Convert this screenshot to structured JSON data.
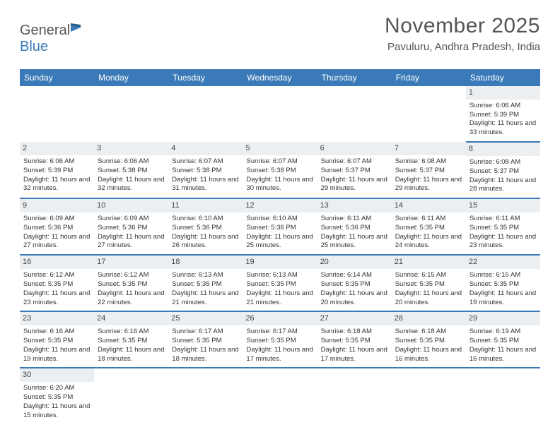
{
  "logo": {
    "part1": "General",
    "part2": "Blue"
  },
  "title": {
    "month": "November 2025",
    "location": "Pavuluru, Andhra Pradesh, India"
  },
  "colors": {
    "headerBg": "#3a7ab8",
    "dayNumBg": "#eceff1",
    "text": "#333"
  },
  "weekdays": [
    "Sunday",
    "Monday",
    "Tuesday",
    "Wednesday",
    "Thursday",
    "Friday",
    "Saturday"
  ],
  "startOffset": 6,
  "days": [
    {
      "n": 1,
      "sunrise": "6:06 AM",
      "sunset": "5:39 PM",
      "daylight": "11 hours and 33 minutes."
    },
    {
      "n": 2,
      "sunrise": "6:06 AM",
      "sunset": "5:39 PM",
      "daylight": "11 hours and 32 minutes."
    },
    {
      "n": 3,
      "sunrise": "6:06 AM",
      "sunset": "5:38 PM",
      "daylight": "11 hours and 32 minutes."
    },
    {
      "n": 4,
      "sunrise": "6:07 AM",
      "sunset": "5:38 PM",
      "daylight": "11 hours and 31 minutes."
    },
    {
      "n": 5,
      "sunrise": "6:07 AM",
      "sunset": "5:38 PM",
      "daylight": "11 hours and 30 minutes."
    },
    {
      "n": 6,
      "sunrise": "6:07 AM",
      "sunset": "5:37 PM",
      "daylight": "11 hours and 29 minutes."
    },
    {
      "n": 7,
      "sunrise": "6:08 AM",
      "sunset": "5:37 PM",
      "daylight": "11 hours and 29 minutes."
    },
    {
      "n": 8,
      "sunrise": "6:08 AM",
      "sunset": "5:37 PM",
      "daylight": "11 hours and 28 minutes."
    },
    {
      "n": 9,
      "sunrise": "6:09 AM",
      "sunset": "5:36 PM",
      "daylight": "11 hours and 27 minutes."
    },
    {
      "n": 10,
      "sunrise": "6:09 AM",
      "sunset": "5:36 PM",
      "daylight": "11 hours and 27 minutes."
    },
    {
      "n": 11,
      "sunrise": "6:10 AM",
      "sunset": "5:36 PM",
      "daylight": "11 hours and 26 minutes."
    },
    {
      "n": 12,
      "sunrise": "6:10 AM",
      "sunset": "5:36 PM",
      "daylight": "11 hours and 25 minutes."
    },
    {
      "n": 13,
      "sunrise": "6:11 AM",
      "sunset": "5:36 PM",
      "daylight": "11 hours and 25 minutes."
    },
    {
      "n": 14,
      "sunrise": "6:11 AM",
      "sunset": "5:35 PM",
      "daylight": "11 hours and 24 minutes."
    },
    {
      "n": 15,
      "sunrise": "6:11 AM",
      "sunset": "5:35 PM",
      "daylight": "11 hours and 23 minutes."
    },
    {
      "n": 16,
      "sunrise": "6:12 AM",
      "sunset": "5:35 PM",
      "daylight": "11 hours and 23 minutes."
    },
    {
      "n": 17,
      "sunrise": "6:12 AM",
      "sunset": "5:35 PM",
      "daylight": "11 hours and 22 minutes."
    },
    {
      "n": 18,
      "sunrise": "6:13 AM",
      "sunset": "5:35 PM",
      "daylight": "11 hours and 21 minutes."
    },
    {
      "n": 19,
      "sunrise": "6:13 AM",
      "sunset": "5:35 PM",
      "daylight": "11 hours and 21 minutes."
    },
    {
      "n": 20,
      "sunrise": "6:14 AM",
      "sunset": "5:35 PM",
      "daylight": "11 hours and 20 minutes."
    },
    {
      "n": 21,
      "sunrise": "6:15 AM",
      "sunset": "5:35 PM",
      "daylight": "11 hours and 20 minutes."
    },
    {
      "n": 22,
      "sunrise": "6:15 AM",
      "sunset": "5:35 PM",
      "daylight": "11 hours and 19 minutes."
    },
    {
      "n": 23,
      "sunrise": "6:16 AM",
      "sunset": "5:35 PM",
      "daylight": "11 hours and 19 minutes."
    },
    {
      "n": 24,
      "sunrise": "6:16 AM",
      "sunset": "5:35 PM",
      "daylight": "11 hours and 18 minutes."
    },
    {
      "n": 25,
      "sunrise": "6:17 AM",
      "sunset": "5:35 PM",
      "daylight": "11 hours and 18 minutes."
    },
    {
      "n": 26,
      "sunrise": "6:17 AM",
      "sunset": "5:35 PM",
      "daylight": "11 hours and 17 minutes."
    },
    {
      "n": 27,
      "sunrise": "6:18 AM",
      "sunset": "5:35 PM",
      "daylight": "11 hours and 17 minutes."
    },
    {
      "n": 28,
      "sunrise": "6:18 AM",
      "sunset": "5:35 PM",
      "daylight": "11 hours and 16 minutes."
    },
    {
      "n": 29,
      "sunrise": "6:19 AM",
      "sunset": "5:35 PM",
      "daylight": "11 hours and 16 minutes."
    },
    {
      "n": 30,
      "sunrise": "6:20 AM",
      "sunset": "5:35 PM",
      "daylight": "11 hours and 15 minutes."
    }
  ],
  "labels": {
    "sunrise": "Sunrise:",
    "sunset": "Sunset:",
    "daylight": "Daylight:"
  }
}
